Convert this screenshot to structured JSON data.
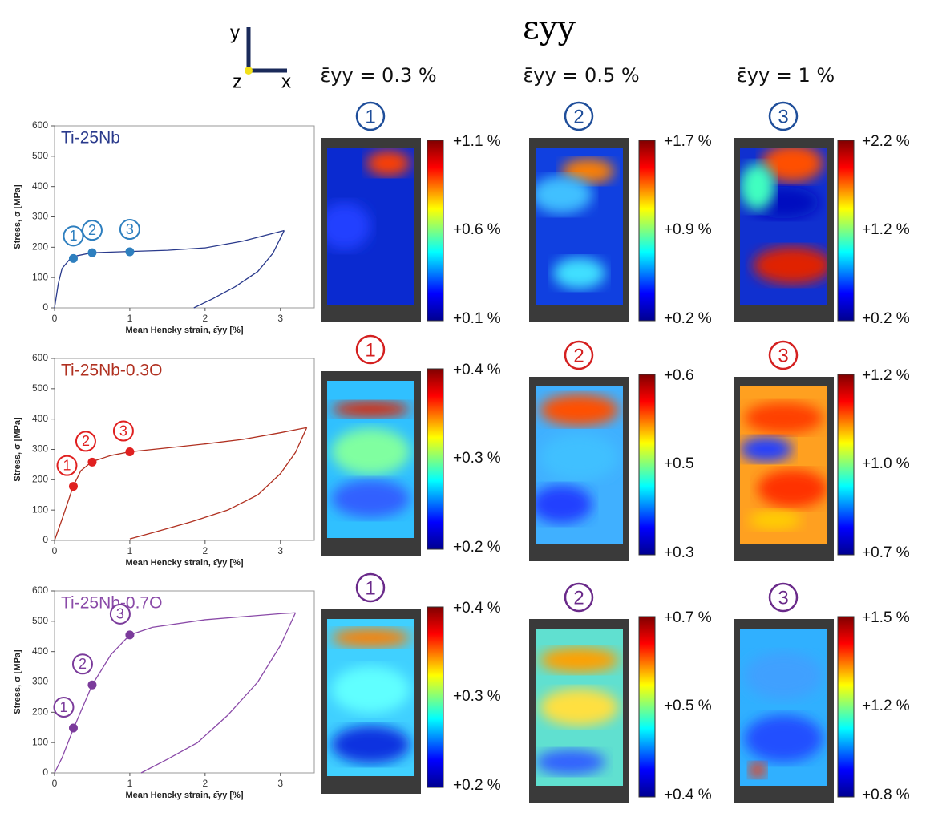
{
  "title": "εyy",
  "axes_icon": {
    "y": "y",
    "z": "z",
    "x": "x"
  },
  "column_headers": [
    "ε̄yy = 0.3 %",
    "ε̄yy = 0.5 %",
    "ε̄yy = 1 %"
  ],
  "chart_data": [
    {
      "type": "line",
      "title": "Ti-25Nb",
      "xlabel": "Mean Hencky strain, ε̄yy [%]",
      "ylabel": "Stress, σ [MPa]",
      "xlim": [
        0,
        3.45
      ],
      "ylim": [
        0,
        600
      ],
      "xticks": [
        0,
        1,
        2,
        3
      ],
      "yticks": [
        0,
        100,
        200,
        300,
        400,
        500,
        600
      ],
      "series": [
        {
          "color": "#2a3a8c",
          "x": [
            0,
            0.05,
            0.1,
            0.2,
            0.3,
            0.5,
            1,
            1.5,
            2,
            2.5,
            3.05
          ],
          "values": [
            0,
            80,
            130,
            160,
            172,
            182,
            186,
            190,
            198,
            220,
            255
          ]
        },
        {
          "color": "#2a3a8c",
          "x": [
            3.05,
            2.9,
            2.7,
            2.4,
            2.1,
            1.85
          ],
          "values": [
            255,
            180,
            120,
            70,
            30,
            0
          ]
        }
      ],
      "points": {
        "color": "#2e7fbf",
        "x": [
          0.25,
          0.5,
          1
        ],
        "values": [
          163,
          182,
          185
        ],
        "labels": [
          "1",
          "2",
          "3"
        ]
      }
    },
    {
      "type": "line",
      "title": "Ti-25Nb-0.3O",
      "xlabel": "Mean Hencky strain, ε̄yy [%]",
      "ylabel": "Stress, σ [MPa]",
      "xlim": [
        0,
        3.45
      ],
      "ylim": [
        0,
        600
      ],
      "xticks": [
        0,
        1,
        2,
        3
      ],
      "yticks": [
        0,
        100,
        200,
        300,
        400,
        500,
        600
      ],
      "series": [
        {
          "color": "#b03020",
          "x": [
            0,
            0.1,
            0.25,
            0.35,
            0.5,
            0.75,
            1,
            1.5,
            2,
            2.5,
            3,
            3.35
          ],
          "values": [
            0,
            70,
            180,
            230,
            260,
            280,
            292,
            305,
            318,
            333,
            355,
            372
          ]
        },
        {
          "color": "#b03020",
          "x": [
            3.35,
            3.2,
            3,
            2.7,
            2.3,
            1.8,
            1.3,
            1
          ],
          "values": [
            372,
            290,
            220,
            150,
            100,
            60,
            25,
            5
          ]
        }
      ],
      "points": {
        "color": "#e02020",
        "x": [
          0.25,
          0.5,
          1
        ],
        "values": [
          178,
          258,
          292
        ],
        "labels": [
          "1",
          "2",
          "3"
        ]
      }
    },
    {
      "type": "line",
      "title": "Ti-25Nb-0.7O",
      "xlabel": "Mean Hencky strain, ε̄yy [%]",
      "ylabel": "Stress, σ [MPa]",
      "xlim": [
        0,
        3.45
      ],
      "ylim": [
        0,
        600
      ],
      "xticks": [
        0,
        1,
        2,
        3
      ],
      "yticks": [
        0,
        100,
        200,
        300,
        400,
        500,
        600
      ],
      "series": [
        {
          "color": "#8a4aa8",
          "x": [
            0,
            0.1,
            0.25,
            0.5,
            0.75,
            1,
            1.3,
            2,
            2.5,
            3,
            3.2
          ],
          "values": [
            0,
            50,
            145,
            290,
            390,
            455,
            480,
            505,
            515,
            525,
            528
          ]
        },
        {
          "color": "#8a4aa8",
          "x": [
            3.2,
            3,
            2.7,
            2.3,
            1.9,
            1.5,
            1.15
          ],
          "values": [
            528,
            420,
            300,
            190,
            100,
            45,
            0
          ]
        }
      ],
      "points": {
        "color": "#7b3b9b",
        "x": [
          0.25,
          0.5,
          1
        ],
        "values": [
          148,
          290,
          455
        ],
        "labels": [
          "1",
          "2",
          "3"
        ]
      }
    }
  ],
  "strain_maps": [
    {
      "marker_color": "#1f4e9a",
      "maps": [
        {
          "marker": "1",
          "max": "+1.1 %",
          "mid": "+0.6 %",
          "min": "+0.1 %"
        },
        {
          "marker": "2",
          "max": "+1.7 %",
          "mid": "+0.9 %",
          "min": "+0.2 %"
        },
        {
          "marker": "3",
          "max": "+2.2 %",
          "mid": "+1.2 %",
          "min": "+0.2 %"
        }
      ]
    },
    {
      "marker_color": "#d42020",
      "maps": [
        {
          "marker": "1",
          "max": "+0.4 %",
          "mid": "+0.3 %",
          "min": "+0.2 %"
        },
        {
          "marker": "2",
          "max": "+0.6",
          "mid": "+0.5",
          "min": "+0.3"
        },
        {
          "marker": "3",
          "max": "+1.2 %",
          "mid": "+1.0 %",
          "min": "+0.7 %"
        }
      ]
    },
    {
      "marker_color": "#6a2a8a",
      "maps": [
        {
          "marker": "1",
          "max": "+0.4 %",
          "mid": "+0.3 %",
          "min": "+0.2 %"
        },
        {
          "marker": "2",
          "max": "+0.7 %",
          "mid": "+0.5 %",
          "min": "+0.4 %"
        },
        {
          "marker": "3",
          "max": "+1.5 %",
          "mid": "+1.2 %",
          "min": "+0.8 %"
        }
      ]
    }
  ]
}
